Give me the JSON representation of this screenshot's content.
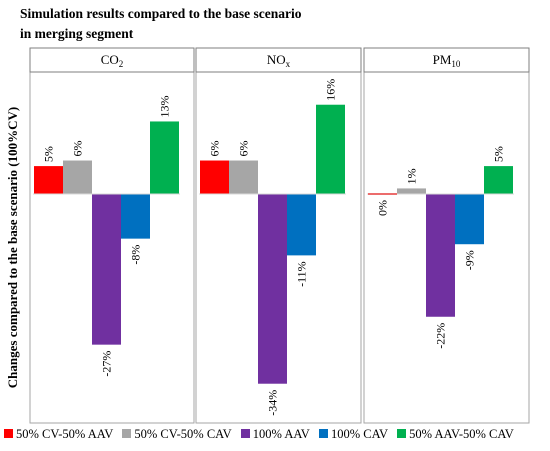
{
  "title_line1": "Simulation results compared to the base scenario",
  "title_line2": "in merging segment",
  "chart_data": {
    "type": "bar",
    "ylabel": "Changes compared to the base scenario (100%CV)",
    "series": [
      {
        "name": "50% CV-50% AAV",
        "color": "#ff0000"
      },
      {
        "name": "50% CV-50% CAV",
        "color": "#a6a6a6"
      },
      {
        "name": "100% AAV",
        "color": "#7030a0"
      },
      {
        "name": "100% CAV",
        "color": "#0070c0"
      },
      {
        "name": "50% AAV-50% CAV",
        "color": "#00b050"
      }
    ],
    "panels": [
      {
        "title_main": "CO",
        "title_sub": "2",
        "values": [
          5,
          6,
          -27,
          -8,
          13
        ],
        "labels": [
          "5%",
          "6%",
          "-27%",
          "-8%",
          "13%"
        ]
      },
      {
        "title_main": "NO",
        "title_sub": "x",
        "values": [
          6,
          6,
          -34,
          -11,
          16
        ],
        "labels": [
          "6%",
          "6%",
          "-34%",
          "-11%",
          "16%"
        ]
      },
      {
        "title_main": "PM",
        "title_sub": "10",
        "values": [
          0,
          1,
          -22,
          -9,
          5
        ],
        "labels": [
          "0%",
          "1%",
          "-22%",
          "-9%",
          "5%"
        ]
      }
    ]
  }
}
